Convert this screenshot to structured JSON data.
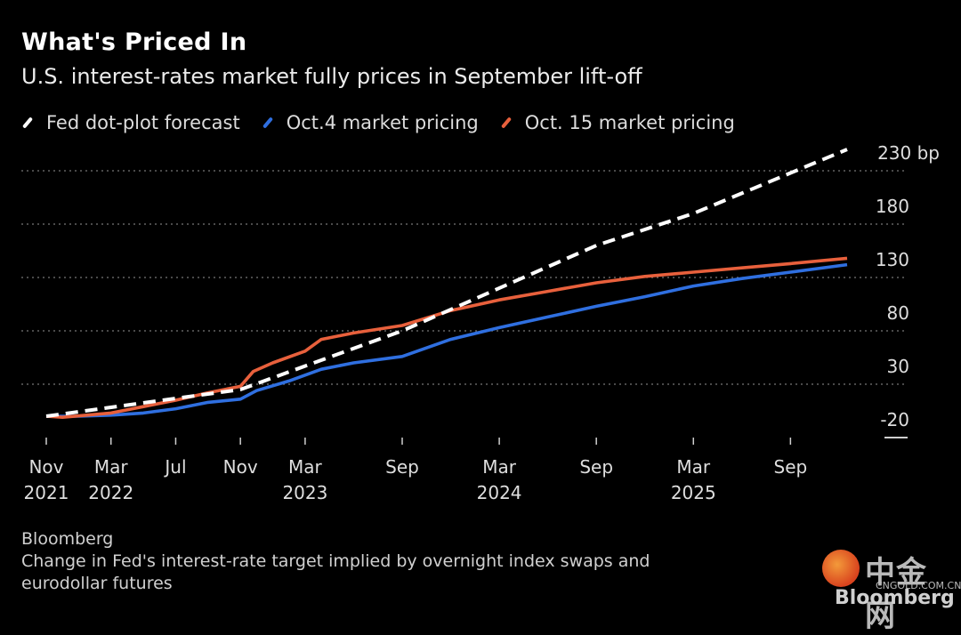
{
  "header": {
    "title": "What's Priced In",
    "subtitle": "U.S. interest-rates market fully prices in September lift-off"
  },
  "footer": {
    "source": "Bloomberg",
    "note": "Change in Fed's interest-rate target implied by overnight index swaps and eurodollar futures"
  },
  "watermark": {
    "cn_text": "中金网",
    "url": "CNGOLD.COM.CN",
    "brand": "Bloomberg"
  },
  "colors": {
    "background": "#000000",
    "fed": "#ffffff",
    "oct4": "#2f6fe0",
    "oct15": "#e8603c",
    "grid": "#777777"
  },
  "chart_data": {
    "type": "line",
    "title": "What's Priced In",
    "subtitle": "U.S. interest-rates market fully prices in September lift-off",
    "xlabel": "",
    "ylabel": "bp",
    "y_unit_label": "230 bp",
    "ylim": [
      -20,
      230
    ],
    "yticks": [
      230,
      180,
      130,
      80,
      30,
      -20
    ],
    "ytick_labels": [
      "230 bp",
      "180",
      "130",
      "80",
      "30",
      "-20"
    ],
    "grid": true,
    "legend_position": "top-left",
    "x_domain_months": [
      0,
      49.5
    ],
    "xticks": [
      {
        "m": 0,
        "line1": "Nov",
        "line2": "2021"
      },
      {
        "m": 4,
        "line1": "Mar",
        "line2": "2022"
      },
      {
        "m": 8,
        "line1": "Jul",
        "line2": ""
      },
      {
        "m": 12,
        "line1": "Nov",
        "line2": ""
      },
      {
        "m": 16,
        "line1": "Mar",
        "line2": "2023"
      },
      {
        "m": 22,
        "line1": "Sep",
        "line2": ""
      },
      {
        "m": 28,
        "line1": "Mar",
        "line2": "2024"
      },
      {
        "m": 34,
        "line1": "Sep",
        "line2": ""
      },
      {
        "m": 40,
        "line1": "Mar",
        "line2": "2025"
      },
      {
        "m": 46,
        "line1": "Sep",
        "line2": ""
      }
    ],
    "series": [
      {
        "name": "Fed dot-plot forecast",
        "key": "fed",
        "style": "dashed",
        "points": [
          [
            0,
            0
          ],
          [
            12,
            25
          ],
          [
            22,
            80
          ],
          [
            34,
            160
          ],
          [
            40,
            190
          ],
          [
            49.5,
            250
          ]
        ]
      },
      {
        "name": "Oct.4 market pricing",
        "key": "oct4",
        "style": "solid",
        "points": [
          [
            0,
            0
          ],
          [
            2,
            0
          ],
          [
            4,
            1
          ],
          [
            6,
            3
          ],
          [
            8,
            7
          ],
          [
            10,
            13
          ],
          [
            12,
            16
          ],
          [
            13,
            24
          ],
          [
            15,
            33
          ],
          [
            17,
            44
          ],
          [
            19,
            50
          ],
          [
            22,
            56
          ],
          [
            25,
            72
          ],
          [
            28,
            83
          ],
          [
            31,
            93
          ],
          [
            34,
            103
          ],
          [
            37,
            112
          ],
          [
            40,
            122
          ],
          [
            43,
            129
          ],
          [
            46,
            135
          ],
          [
            49.5,
            142
          ]
        ]
      },
      {
        "name": "Oct. 15 market pricing",
        "key": "oct15",
        "style": "solid",
        "points": [
          [
            0,
            0
          ],
          [
            1,
            -1
          ],
          [
            4,
            3
          ],
          [
            6,
            9
          ],
          [
            8,
            15
          ],
          [
            10,
            22
          ],
          [
            12,
            28
          ],
          [
            12.8,
            42
          ],
          [
            14,
            50
          ],
          [
            16,
            61
          ],
          [
            17,
            72
          ],
          [
            19,
            78
          ],
          [
            22,
            85
          ],
          [
            25,
            99
          ],
          [
            28,
            109
          ],
          [
            31,
            117
          ],
          [
            34,
            125
          ],
          [
            37,
            131
          ],
          [
            40,
            135
          ],
          [
            43,
            139
          ],
          [
            46,
            143
          ],
          [
            49.5,
            148
          ]
        ]
      }
    ]
  }
}
